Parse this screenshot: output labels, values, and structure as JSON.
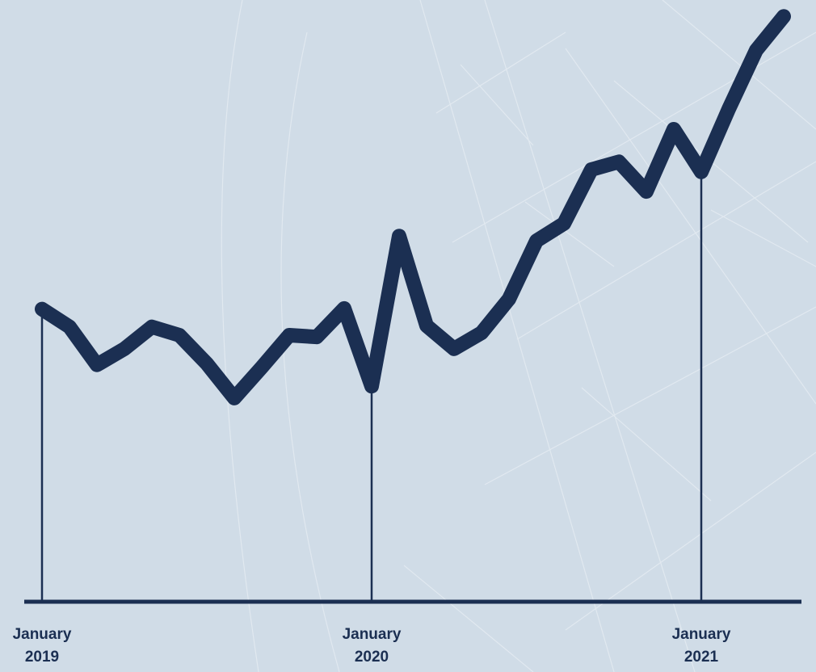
{
  "chart_data": {
    "type": "line",
    "categories": [
      "January 2019",
      null,
      null,
      null,
      null,
      null,
      null,
      null,
      null,
      null,
      null,
      null,
      "January 2020",
      null,
      null,
      null,
      null,
      null,
      null,
      null,
      null,
      null,
      null,
      null,
      "January 2021",
      null,
      null,
      null
    ],
    "series": [
      {
        "color": "#1b2f52",
        "values": [
          49.3,
          46.3,
          39.9,
          42.6,
          46.3,
          44.9,
          40.1,
          34.3,
          39.5,
          44.9,
          44.6,
          49.4,
          36.3,
          61.6,
          46.5,
          42.6,
          45.3,
          51.0,
          60.8,
          63.7,
          72.8,
          74.1,
          69.1,
          79.6,
          72.4,
          83.0,
          92.9,
          98.6
        ]
      }
    ],
    "ylim": [
      0,
      100
    ]
  }
}
